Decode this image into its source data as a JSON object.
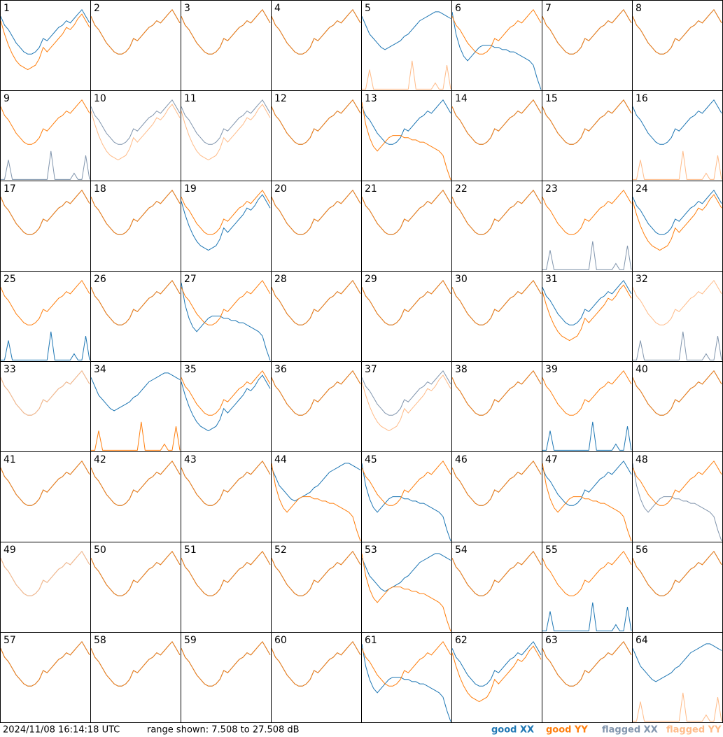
{
  "timestamp": "2024/11/08 16:14:18 UTC",
  "range_label": "range shown: 7.508 to 27.508 dB",
  "ylim": [
    7.508,
    27.508
  ],
  "legend": [
    {
      "name": "good XX",
      "color": "#1f77b4"
    },
    {
      "name": "good YY",
      "color": "#ff7f0e"
    },
    {
      "name": "flagged XX",
      "color": "#8195ad"
    },
    {
      "name": "flagged YY",
      "color": "#ffbb88"
    }
  ],
  "profiles": {
    "typical": [
      24,
      22,
      21,
      19.5,
      18,
      17,
      16,
      15.5,
      15.5,
      16,
      17,
      19,
      18.5,
      19.5,
      20.5,
      21.5,
      22,
      23,
      22.5,
      23.5,
      24.5,
      25.5,
      24,
      22.5
    ],
    "deep": [
      23,
      20,
      17.5,
      15.5,
      14,
      13,
      12.5,
      12,
      12.5,
      13,
      14.5,
      17,
      16,
      17,
      18,
      19,
      20,
      21.5,
      21,
      22,
      23.5,
      24.5,
      23,
      21.5
    ],
    "high": [
      24,
      22,
      20,
      19,
      18,
      17,
      16.5,
      17,
      17.5,
      18,
      18.5,
      19.5,
      20,
      21,
      22,
      23,
      23.5,
      24,
      24.5,
      25,
      25,
      24.5,
      24,
      23.5
    ],
    "flat_decay": [
      25,
      20,
      17,
      15,
      14,
      15,
      16,
      17,
      17.5,
      17.5,
      17.5,
      17,
      17,
      16.5,
      16.5,
      16,
      16,
      15.5,
      15,
      14.5,
      14,
      13,
      10,
      7.508
    ],
    "spikes": [
      7.6,
      7.6,
      12,
      7.6,
      7.6,
      7.6,
      7.6,
      7.6,
      7.6,
      7.6,
      7.6,
      7.6,
      7.6,
      14,
      7.6,
      7.6,
      7.6,
      7.6,
      7.6,
      9,
      7.6,
      7.6,
      13,
      7.6
    ]
  },
  "panels": [
    {
      "label": "1",
      "traces": [
        [
          "typical",
          0
        ],
        [
          "deep",
          1
        ]
      ]
    },
    {
      "label": "2",
      "traces": [
        [
          "typical",
          0
        ],
        [
          "typical",
          1
        ]
      ]
    },
    {
      "label": "3",
      "traces": [
        [
          "typical",
          0
        ],
        [
          "typical",
          1
        ]
      ]
    },
    {
      "label": "4",
      "traces": [
        [
          "typical",
          0
        ],
        [
          "typical",
          1
        ]
      ]
    },
    {
      "label": "5",
      "traces": [
        [
          "high",
          0
        ],
        [
          "spikes",
          3
        ]
      ]
    },
    {
      "label": "6",
      "traces": [
        [
          "flat_decay",
          0
        ],
        [
          "typical",
          1
        ]
      ]
    },
    {
      "label": "7",
      "traces": [
        [
          "typical",
          0
        ],
        [
          "typical",
          1
        ]
      ]
    },
    {
      "label": "8",
      "traces": [
        [
          "typical",
          0
        ],
        [
          "typical",
          1
        ]
      ]
    },
    {
      "label": "9",
      "traces": [
        [
          "spikes",
          2
        ],
        [
          "typical",
          1
        ]
      ]
    },
    {
      "label": "10",
      "traces": [
        [
          "typical",
          2
        ],
        [
          "deep",
          3
        ]
      ]
    },
    {
      "label": "11",
      "traces": [
        [
          "typical",
          2
        ],
        [
          "deep",
          3
        ]
      ]
    },
    {
      "label": "12",
      "traces": [
        [
          "typical",
          0
        ],
        [
          "typical",
          1
        ]
      ]
    },
    {
      "label": "13",
      "traces": [
        [
          "typical",
          0
        ],
        [
          "flat_decay",
          1
        ]
      ]
    },
    {
      "label": "14",
      "traces": [
        [
          "typical",
          0
        ],
        [
          "typical",
          1
        ]
      ]
    },
    {
      "label": "15",
      "traces": [
        [
          "typical",
          0
        ],
        [
          "typical",
          1
        ]
      ]
    },
    {
      "label": "16",
      "traces": [
        [
          "typical",
          0
        ],
        [
          "spikes",
          3
        ]
      ]
    },
    {
      "label": "17",
      "traces": [
        [
          "typical",
          0
        ],
        [
          "typical",
          1
        ]
      ]
    },
    {
      "label": "18",
      "traces": [
        [
          "typical",
          0
        ],
        [
          "typical",
          1
        ]
      ]
    },
    {
      "label": "19",
      "traces": [
        [
          "deep",
          0
        ],
        [
          "typical",
          1
        ]
      ]
    },
    {
      "label": "20",
      "traces": [
        [
          "typical",
          0
        ],
        [
          "typical",
          1
        ]
      ]
    },
    {
      "label": "21",
      "traces": [
        [
          "typical",
          0
        ],
        [
          "typical",
          1
        ]
      ]
    },
    {
      "label": "22",
      "traces": [
        [
          "typical",
          0
        ],
        [
          "typical",
          1
        ]
      ]
    },
    {
      "label": "23",
      "traces": [
        [
          "spikes",
          2
        ],
        [
          "typical",
          1
        ]
      ]
    },
    {
      "label": "24",
      "traces": [
        [
          "typical",
          0
        ],
        [
          "deep",
          1
        ]
      ]
    },
    {
      "label": "25",
      "traces": [
        [
          "spikes",
          0
        ],
        [
          "typical",
          1
        ]
      ]
    },
    {
      "label": "26",
      "traces": [
        [
          "typical",
          0
        ],
        [
          "typical",
          1
        ]
      ]
    },
    {
      "label": "27",
      "traces": [
        [
          "flat_decay",
          0
        ],
        [
          "typical",
          1
        ]
      ]
    },
    {
      "label": "28",
      "traces": [
        [
          "typical",
          0
        ],
        [
          "typical",
          1
        ]
      ]
    },
    {
      "label": "29",
      "traces": [
        [
          "typical",
          0
        ],
        [
          "typical",
          1
        ]
      ]
    },
    {
      "label": "30",
      "traces": [
        [
          "typical",
          0
        ],
        [
          "typical",
          1
        ]
      ]
    },
    {
      "label": "31",
      "traces": [
        [
          "typical",
          0
        ],
        [
          "deep",
          1
        ]
      ]
    },
    {
      "label": "32",
      "traces": [
        [
          "spikes",
          2
        ],
        [
          "typical",
          3
        ]
      ]
    },
    {
      "label": "33",
      "traces": [
        [
          "typical",
          2
        ],
        [
          "typical",
          3
        ]
      ]
    },
    {
      "label": "34",
      "traces": [
        [
          "high",
          0
        ],
        [
          "spikes",
          1
        ]
      ]
    },
    {
      "label": "35",
      "traces": [
        [
          "deep",
          0
        ],
        [
          "typical",
          1
        ]
      ]
    },
    {
      "label": "36",
      "traces": [
        [
          "typical",
          0
        ],
        [
          "typical",
          1
        ]
      ]
    },
    {
      "label": "37",
      "traces": [
        [
          "typical",
          2
        ],
        [
          "deep",
          3
        ]
      ]
    },
    {
      "label": "38",
      "traces": [
        [
          "typical",
          0
        ],
        [
          "typical",
          1
        ]
      ]
    },
    {
      "label": "39",
      "traces": [
        [
          "spikes",
          0
        ],
        [
          "typical",
          1
        ]
      ]
    },
    {
      "label": "40",
      "traces": [
        [
          "typical",
          0
        ],
        [
          "typical",
          1
        ]
      ]
    },
    {
      "label": "41",
      "traces": [
        [
          "typical",
          0
        ],
        [
          "typical",
          1
        ]
      ]
    },
    {
      "label": "42",
      "traces": [
        [
          "typical",
          0
        ],
        [
          "typical",
          1
        ]
      ]
    },
    {
      "label": "43",
      "traces": [
        [
          "typical",
          0
        ],
        [
          "typical",
          1
        ]
      ]
    },
    {
      "label": "44",
      "traces": [
        [
          "high",
          0
        ],
        [
          "flat_decay",
          1
        ]
      ]
    },
    {
      "label": "45",
      "traces": [
        [
          "flat_decay",
          0
        ],
        [
          "typical",
          1
        ]
      ]
    },
    {
      "label": "46",
      "traces": [
        [
          "typical",
          0
        ],
        [
          "typical",
          1
        ]
      ]
    },
    {
      "label": "47",
      "traces": [
        [
          "typical",
          0
        ],
        [
          "flat_decay",
          1
        ]
      ]
    },
    {
      "label": "48",
      "traces": [
        [
          "flat_decay",
          2
        ],
        [
          "typical",
          1
        ]
      ]
    },
    {
      "label": "49",
      "traces": [
        [
          "typical",
          2
        ],
        [
          "typical",
          3
        ]
      ]
    },
    {
      "label": "50",
      "traces": [
        [
          "typical",
          0
        ],
        [
          "typical",
          1
        ]
      ]
    },
    {
      "label": "51",
      "traces": [
        [
          "typical",
          0
        ],
        [
          "typical",
          1
        ]
      ]
    },
    {
      "label": "52",
      "traces": [
        [
          "typical",
          0
        ],
        [
          "typical",
          1
        ]
      ]
    },
    {
      "label": "53",
      "traces": [
        [
          "high",
          0
        ],
        [
          "flat_decay",
          1
        ]
      ]
    },
    {
      "label": "54",
      "traces": [
        [
          "typical",
          0
        ],
        [
          "typical",
          1
        ]
      ]
    },
    {
      "label": "55",
      "traces": [
        [
          "spikes",
          0
        ],
        [
          "typical",
          1
        ]
      ]
    },
    {
      "label": "56",
      "traces": [
        [
          "typical",
          0
        ],
        [
          "typical",
          1
        ]
      ]
    },
    {
      "label": "57",
      "traces": [
        [
          "typical",
          0
        ],
        [
          "typical",
          1
        ]
      ]
    },
    {
      "label": "58",
      "traces": [
        [
          "typical",
          0
        ],
        [
          "typical",
          1
        ]
      ]
    },
    {
      "label": "59",
      "traces": [
        [
          "typical",
          0
        ],
        [
          "typical",
          1
        ]
      ]
    },
    {
      "label": "60",
      "traces": [
        [
          "typical",
          0
        ],
        [
          "typical",
          1
        ]
      ]
    },
    {
      "label": "61",
      "traces": [
        [
          "flat_decay",
          0
        ],
        [
          "typical",
          1
        ]
      ]
    },
    {
      "label": "62",
      "traces": [
        [
          "typical",
          0
        ],
        [
          "deep",
          1
        ]
      ]
    },
    {
      "label": "63",
      "traces": [
        [
          "typical",
          0
        ],
        [
          "typical",
          1
        ]
      ]
    },
    {
      "label": "64",
      "traces": [
        [
          "high",
          0
        ],
        [
          "spikes",
          3
        ]
      ]
    }
  ]
}
